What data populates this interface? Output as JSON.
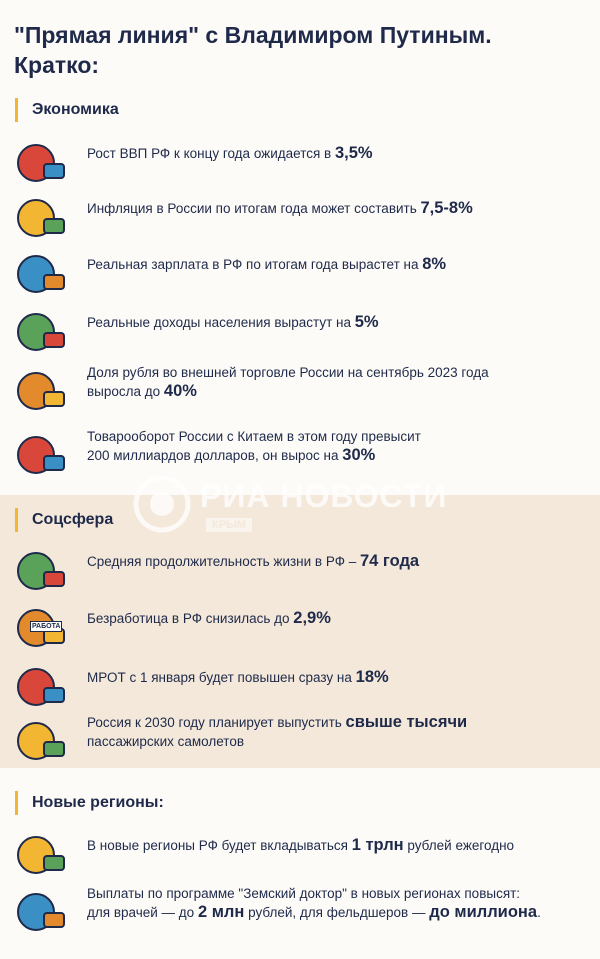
{
  "header": {
    "title_lines": [
      "\"Прямая линия\" с Владимиром Путиным.",
      "Кратко:"
    ]
  },
  "watermark": {
    "brand": "РИА НОВОСТИ",
    "region": "КРЫМ"
  },
  "sections": [
    {
      "title": "Экономика",
      "items": [
        {
          "lines": [
            [
              {
                "text": "Рост ВВП РФ к концу года ожидается в ",
                "bold": false
              },
              {
                "text": "3,5%",
                "bold": true
              }
            ]
          ]
        },
        {
          "lines": [
            [
              {
                "text": "Инфляция в России по итогам года может составить ",
                "bold": false
              },
              {
                "text": "7,5-8%",
                "bold": true
              }
            ]
          ]
        },
        {
          "lines": [
            [
              {
                "text": "Реальная зарплата в РФ по итогам года вырастет на ",
                "bold": false
              },
              {
                "text": "8%",
                "bold": true
              }
            ]
          ]
        },
        {
          "lines": [
            [
              {
                "text": "Реальные доходы населения вырастут на ",
                "bold": false
              },
              {
                "text": "5%",
                "bold": true
              }
            ]
          ]
        },
        {
          "lines": [
            [
              {
                "text": "Доля рубля во внешней торговле России на сентябрь 2023 года",
                "bold": false
              }
            ],
            [
              {
                "text": "выросла до ",
                "bold": false
              },
              {
                "text": "40%",
                "bold": true
              }
            ]
          ]
        },
        {
          "lines": [
            [
              {
                "text": "Товарооборот России с Китаем в этом году превысит",
                "bold": false
              }
            ],
            [
              {
                "text": "200 миллиардов долларов, он вырос на ",
                "bold": false
              },
              {
                "text": "30%",
                "bold": true
              }
            ]
          ]
        }
      ]
    },
    {
      "title": "Соцсфера",
      "items": [
        {
          "lines": [
            [
              {
                "text": "Средняя продолжительность жизни в РФ – ",
                "bold": false
              },
              {
                "text": "74 года",
                "bold": true
              }
            ]
          ]
        },
        {
          "icon_label": "РАБОТА",
          "lines": [
            [
              {
                "text": "Безработица в РФ снизилась до ",
                "bold": false
              },
              {
                "text": "2,9%",
                "bold": true
              }
            ]
          ]
        },
        {
          "lines": [
            [
              {
                "text": "МРОТ с 1 января будет повышен сразу на ",
                "bold": false
              },
              {
                "text": "18%",
                "bold": true
              }
            ]
          ]
        },
        {
          "lines": [
            [
              {
                "text": "Россия к 2030 году планирует выпустить ",
                "bold": false
              },
              {
                "text": "свыше тысячи",
                "bold": true
              }
            ],
            [
              {
                "text": "пассажирских самолетов",
                "bold": false
              }
            ]
          ]
        }
      ]
    },
    {
      "title": "Новые регионы:",
      "items": [
        {
          "lines": [
            [
              {
                "text": "В новые регионы РФ будет вкладываться ",
                "bold": false
              },
              {
                "text": "1 трлн",
                "bold": true
              },
              {
                "text": " рублей ежегодно",
                "bold": false
              }
            ]
          ]
        },
        {
          "lines": [
            [
              {
                "text": "Выплаты по программе \"Земский доктор\" в новых регионах повысят:",
                "bold": false
              }
            ],
            [
              {
                "text": "для врачей — до ",
                "bold": false
              },
              {
                "text": "2 млн",
                "bold": true
              },
              {
                "text": " рублей, для фельдшеров — ",
                "bold": false
              },
              {
                "text": "до миллиона",
                "bold": true
              },
              {
                "text": ".",
                "bold": false
              }
            ]
          ]
        }
      ]
    }
  ]
}
